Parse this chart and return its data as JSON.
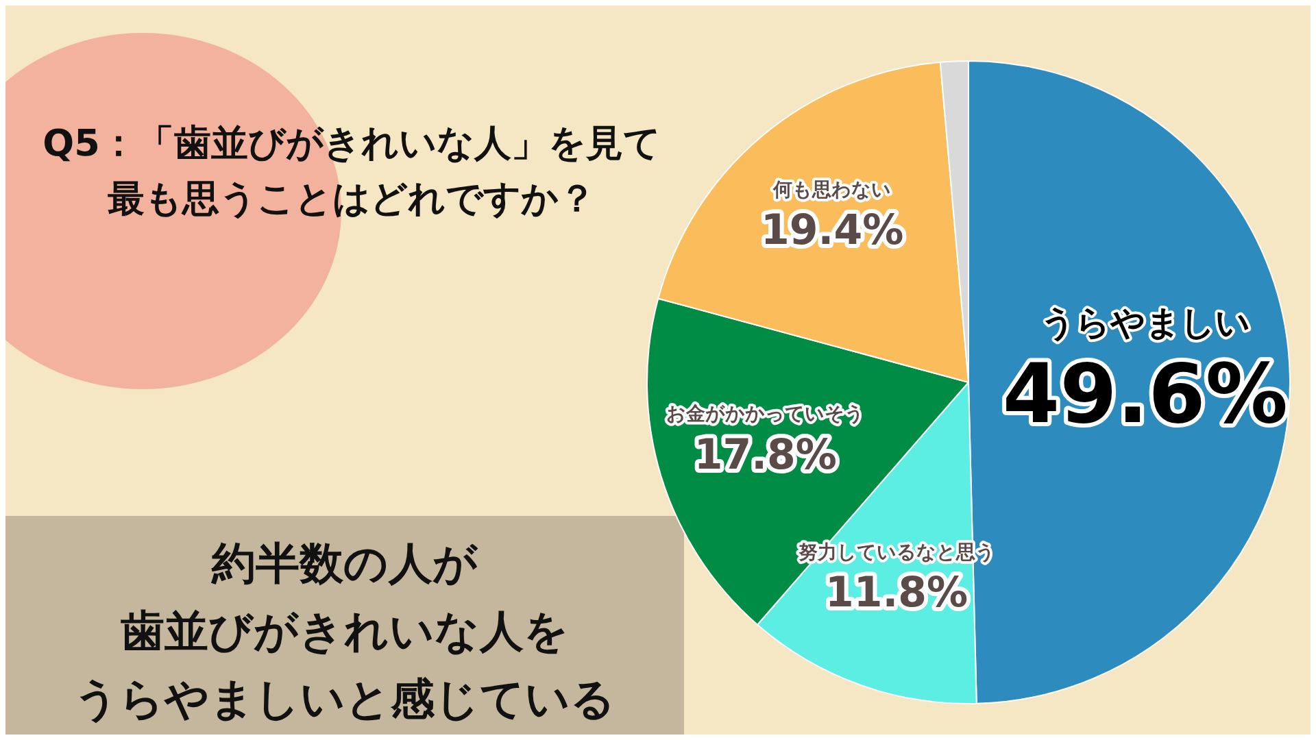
{
  "chart_data": {
    "type": "pie",
    "title": "Q5：「歯並びがきれいな人」を見て最も思うことはどれですか？",
    "categories": [
      "うらやましい",
      "努力しているなと思う",
      "お金がかかっていそう",
      "何も思わない",
      null
    ],
    "values": [
      49.6,
      11.8,
      17.8,
      19.4,
      1.4
    ],
    "value_labels": [
      "49.6%",
      "11.8%",
      "17.8%",
      "19.4%",
      null
    ],
    "colors": [
      "#2e8bbd",
      "#5ceee2",
      "#008c45",
      "#fbbd5c",
      "#d9d9d9"
    ],
    "legend": false,
    "annotations": [
      "約半数の人が",
      "歯並びがきれいな人を",
      "うらやましいと感じている"
    ]
  }
}
